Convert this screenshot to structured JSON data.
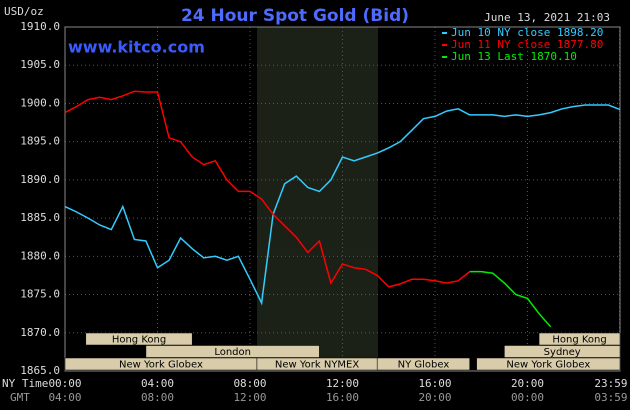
{
  "chart_data": {
    "type": "line",
    "title": "24 Hour Spot Gold (Bid)",
    "timestamp": "June 13, 2021 21:03",
    "unit_label": "USD/oz",
    "watermark": "www.kitco.com",
    "x_row_labels": [
      "NY Time",
      "GMT"
    ],
    "x": [
      0,
      0.5,
      1,
      1.5,
      2,
      2.5,
      3,
      3.5,
      4,
      4.5,
      5,
      5.5,
      6,
      6.5,
      7,
      7.5,
      8,
      8.5,
      9,
      9.5,
      10,
      10.5,
      11,
      11.5,
      12,
      12.5,
      13,
      13.5,
      14,
      14.5,
      15,
      15.5,
      16,
      16.5,
      17,
      17.5,
      18,
      18.5,
      19,
      19.5,
      20,
      20.5,
      21,
      21.5,
      22,
      22.5,
      23,
      23.5,
      24
    ],
    "series": [
      {
        "name": "Jun 10 NY close 1898.20",
        "color": "#33ccff",
        "values": [
          1886.5,
          1885.8,
          1885.0,
          1884.1,
          1883.5,
          1886.5,
          1882.2,
          1882.0,
          1878.5,
          1879.5,
          1882.4,
          1881.0,
          1879.8,
          1880.0,
          1879.5,
          1880.0,
          1877.0,
          1873.9,
          1885.5,
          1889.5,
          1890.5,
          1889.0,
          1888.5,
          1890.0,
          1893.0,
          1892.5,
          1893.0,
          1893.5,
          1894.2,
          1895.0,
          1896.5,
          1898.0,
          1898.3,
          1899.0,
          1899.3,
          1898.5,
          1898.5,
          1898.5,
          1898.3,
          1898.5,
          1898.3,
          1898.5,
          1898.8,
          1899.3,
          1899.6,
          1899.8,
          1899.8,
          1899.8,
          1899.2
        ]
      },
      {
        "name": "Jun 11 NY close 1877.80",
        "color": "#ff0000",
        "values": [
          1898.8,
          1899.6,
          1900.5,
          1900.8,
          1900.5,
          1901.0,
          1901.6,
          1901.5,
          1901.5,
          1895.5,
          1895.0,
          1893.0,
          1892.0,
          1892.5,
          1890.0,
          1888.5,
          1888.5,
          1887.5,
          1885.5,
          1884.0,
          1882.5,
          1880.5,
          1882.0,
          1876.5,
          1879.0,
          1878.5,
          1878.3,
          1877.5,
          1876.0,
          1876.4,
          1877.0,
          1877.0,
          1876.8,
          1876.5,
          1876.8,
          1878.0,
          null,
          null,
          null,
          null,
          null,
          null,
          null,
          null,
          null,
          null,
          null,
          null,
          null
        ]
      },
      {
        "name": "Jun 13 Last 1870.10",
        "color": "#00ee00",
        "values": [
          null,
          null,
          null,
          null,
          null,
          null,
          null,
          null,
          null,
          null,
          null,
          null,
          null,
          null,
          null,
          null,
          null,
          null,
          null,
          null,
          null,
          null,
          null,
          null,
          null,
          null,
          null,
          null,
          null,
          null,
          null,
          null,
          null,
          null,
          null,
          1878.0,
          1878.0,
          1877.8,
          1876.5,
          1875.0,
          1874.5,
          1872.5,
          1870.8,
          null,
          null,
          null,
          null,
          null,
          null
        ]
      }
    ],
    "xlim": [
      0,
      24
    ],
    "xticks": [
      {
        "value": 0,
        "label": "00:00"
      },
      {
        "value": 4,
        "label": "04:00"
      },
      {
        "value": 8,
        "label": "08:00"
      },
      {
        "value": 12,
        "label": "12:00"
      },
      {
        "value": 16,
        "label": "16:00"
      },
      {
        "value": 20,
        "label": "20:00"
      },
      {
        "value": 23.98,
        "label": "23:59"
      }
    ],
    "gmt_ticks": [
      {
        "value": 0,
        "label": "04:00"
      },
      {
        "value": 4,
        "label": "08:00"
      },
      {
        "value": 8,
        "label": "12:00"
      },
      {
        "value": 12,
        "label": "16:00"
      },
      {
        "value": 16,
        "label": "20:00"
      },
      {
        "value": 20,
        "label": "00:00"
      },
      {
        "value": 23.98,
        "label": "03:59"
      }
    ],
    "ylim": [
      1865,
      1910
    ],
    "yticks": [
      {
        "value": 1865,
        "label": "1865.0"
      },
      {
        "value": 1870,
        "label": "1870.0"
      },
      {
        "value": 1875,
        "label": "1875.0"
      },
      {
        "value": 1880,
        "label": "1880.0"
      },
      {
        "value": 1885,
        "label": "1885.0"
      },
      {
        "value": 1890,
        "label": "1890.0"
      },
      {
        "value": 1895,
        "label": "1895.0"
      },
      {
        "value": 1900,
        "label": "1900.0"
      },
      {
        "value": 1905,
        "label": "1905.0"
      },
      {
        "value": 1910,
        "label": "1910.0"
      }
    ],
    "grid": true,
    "sessions": [
      "Hong Kong",
      "London",
      "New York Globex",
      "New York NYMEX",
      "NY Globex",
      "Hong Kong",
      "Sydney",
      "New York Globex"
    ]
  }
}
